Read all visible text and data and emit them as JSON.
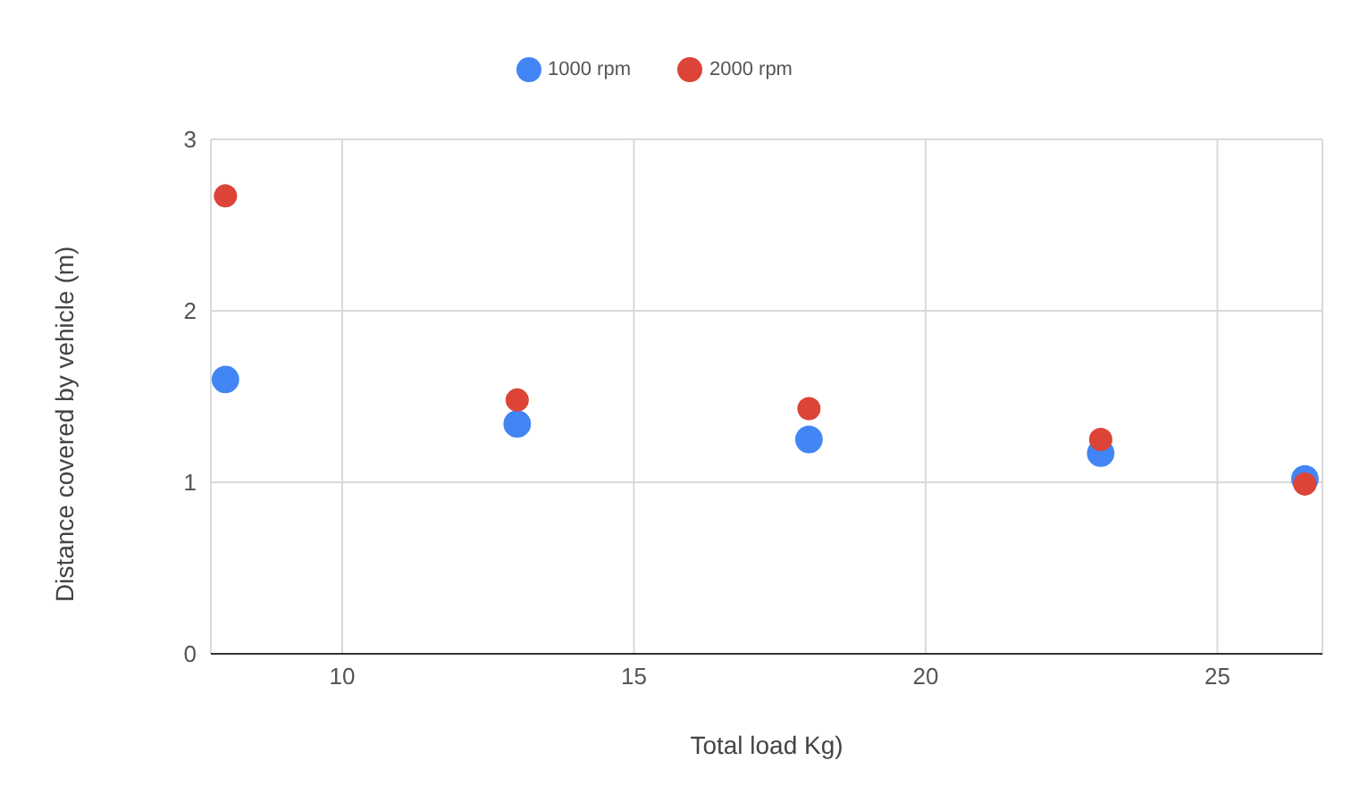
{
  "chart_data": {
    "type": "scatter",
    "xlabel": "Total load Kg)",
    "ylabel": "Distance covered by vehicle (m)",
    "x": [
      8,
      13,
      18,
      23,
      26.5
    ],
    "series": [
      {
        "name": "1000 rpm",
        "color": "#4285f4",
        "values": [
          1.6,
          1.34,
          1.25,
          1.17,
          1.02
        ]
      },
      {
        "name": "2000 rpm",
        "color": "#db4437",
        "values": [
          2.67,
          1.48,
          1.43,
          1.25,
          0.99
        ]
      }
    ],
    "xlim": [
      7.75,
      26.8
    ],
    "xticks": [
      10,
      15,
      20,
      25
    ],
    "ylim": [
      0,
      3
    ],
    "yticks": [
      0,
      1,
      2,
      3
    ],
    "grid": true,
    "legend": "top",
    "marker": "circle"
  }
}
